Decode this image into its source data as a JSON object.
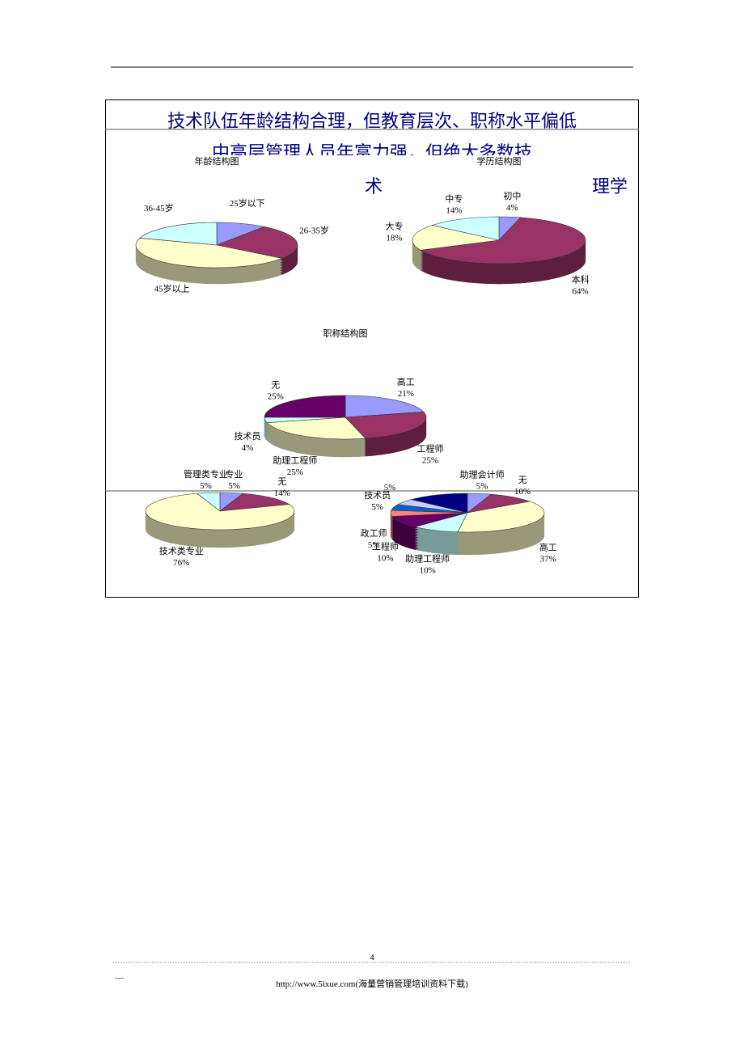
{
  "page": {
    "title": "技术队伍年龄结构合理，但教育层次、职称水平偏低",
    "subtitle": "中高层管理人员年富力强，但绝大多数技",
    "fragment_left": "术",
    "fragment_right": "理学",
    "page_number": "4",
    "footer_dash": "—",
    "footer": "http://www.5ixue.com(海量营销管理培训资料下载)"
  },
  "chart_data": [
    {
      "type": "pie",
      "title": "年龄结构图",
      "categories": [
        "25岁以下",
        "26-35岁",
        "45岁以上",
        "36-45岁"
      ],
      "values": [
        10,
        25,
        45,
        20
      ],
      "colors": [
        "#9999ff",
        "#993366",
        "#ffffcc",
        "#ccffff"
      ]
    },
    {
      "type": "pie",
      "title": "学历结构图",
      "categories": [
        "初中",
        "本科",
        "大专",
        "中专"
      ],
      "values": [
        4,
        64,
        18,
        14
      ],
      "value_labels": [
        "4%",
        "64%",
        "18%",
        "14%"
      ],
      "colors": [
        "#9999ff",
        "#993366",
        "#ffffcc",
        "#ccffff"
      ]
    },
    {
      "type": "pie",
      "title": "职称结构图",
      "categories": [
        "高工",
        "工程师",
        "助理工程师",
        "技术员",
        "无"
      ],
      "values": [
        21,
        25,
        25,
        4,
        25
      ],
      "value_labels": [
        "21%",
        "25%",
        "25%",
        "4%",
        "25%"
      ],
      "colors": [
        "#9999ff",
        "#993366",
        "#ffffcc",
        "#ccffff",
        "#660066"
      ]
    },
    {
      "type": "pie",
      "categories": [
        "专业",
        "无",
        "技术类专业",
        "管理类专业"
      ],
      "values": [
        5,
        14,
        76,
        5
      ],
      "value_labels": [
        "5%",
        "14%",
        "76%",
        "5%"
      ],
      "colors": [
        "#9999ff",
        "#993366",
        "#ffffcc",
        "#ccffff"
      ]
    },
    {
      "type": "pie",
      "categories": [
        "助理会计师",
        "无",
        "高工",
        "助理工程师",
        "工程师",
        "政工师",
        "技术员",
        null,
        null
      ],
      "values": [
        5,
        10,
        37,
        10,
        10,
        5,
        5,
        5,
        13
      ],
      "value_labels": [
        "5%",
        "10%",
        "37%",
        "10%",
        "10%",
        "5%",
        "5%",
        "5%",
        null
      ],
      "colors": [
        "#9999ff",
        "#993366",
        "#ffffcc",
        "#ccffff",
        "#660066",
        "#ff8080",
        "#0066cc",
        "#ccccff",
        "#000080"
      ]
    }
  ]
}
